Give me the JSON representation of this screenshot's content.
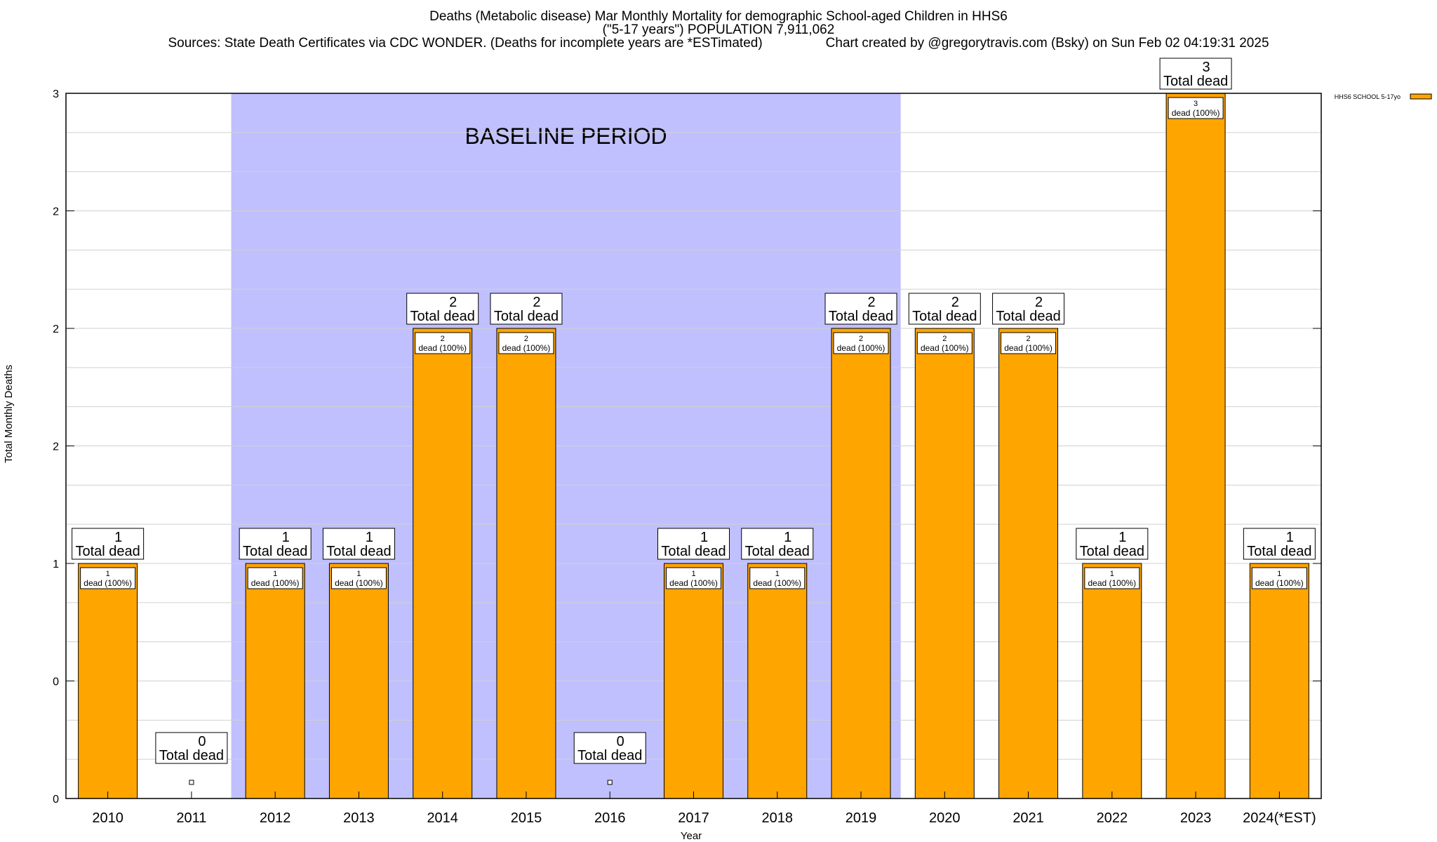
{
  "chart_data": {
    "type": "bar",
    "title": "Deaths (Metabolic disease) Mar Monthly Mortality for demographic School-aged Children in HHS6",
    "subtitle": "(\"5-17 years\") POPULATION 7,911,062",
    "sources": "Sources: State Death Certificates via CDC WONDER. (Deaths for incomplete years are *ESTimated)",
    "credit": "Chart created by @gregorytravis.com (Bsky) on Sun Feb 02 04:19:31 2025",
    "xlabel": "Year",
    "ylabel": "Total Monthly Deaths",
    "categories": [
      "2010",
      "2011",
      "2012",
      "2013",
      "2014",
      "2015",
      "2016",
      "2017",
      "2018",
      "2019",
      "2020",
      "2021",
      "2022",
      "2023",
      "2024(*EST)"
    ],
    "series": [
      {
        "name": "HHS6 SCHOOL 5-17yo",
        "color": "#FFA500",
        "values": [
          1,
          0,
          1,
          1,
          2,
          2,
          0,
          1,
          1,
          2,
          2,
          2,
          1,
          3,
          1
        ]
      }
    ],
    "ylim": [
      0,
      3
    ],
    "y_tick_values": [
      0,
      0.5,
      1,
      1.5,
      2,
      2.5,
      3
    ],
    "y_tick_labels": [
      "0",
      "0",
      "1",
      "2",
      "2",
      "2",
      "3"
    ],
    "total_label_word": "Total dead",
    "inner_label_word": "dead (100%)",
    "baseline": {
      "label": "BASELINE PERIOD",
      "from": "2012",
      "to": "2019",
      "color": "#C0C0FF"
    },
    "grid": true,
    "legend": "top-right",
    "colors": {
      "bar": "#FFA500",
      "baseline": "#C0C0FF",
      "grid": "#d0d0d0"
    }
  }
}
